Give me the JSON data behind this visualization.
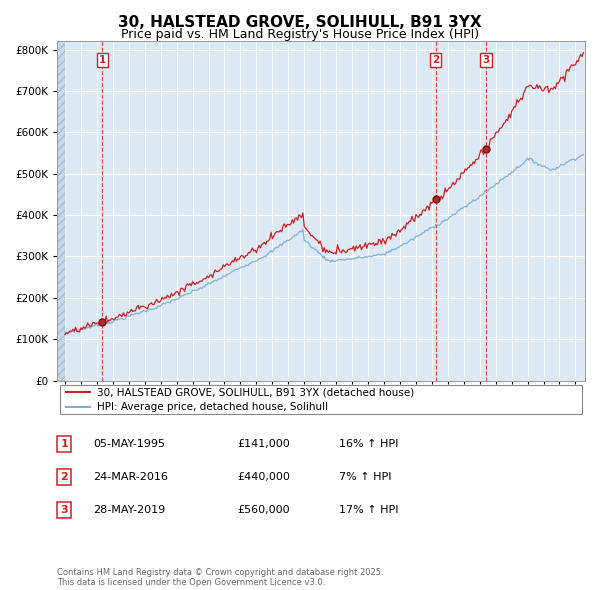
{
  "title": "30, HALSTEAD GROVE, SOLIHULL, B91 3YX",
  "subtitle": "Price paid vs. HM Land Registry's House Price Index (HPI)",
  "title_fontsize": 11,
  "subtitle_fontsize": 9,
  "ytick_values": [
    0,
    100000,
    200000,
    300000,
    400000,
    500000,
    600000,
    700000,
    800000
  ],
  "ylim": [
    0,
    820000
  ],
  "year_start": 1993,
  "year_end": 2025,
  "hpi_color": "#7aaddb",
  "price_color": "#cc2222",
  "bg_color": "#dce9f5",
  "grid_color": "#ffffff",
  "legend_label_price": "30, HALSTEAD GROVE, SOLIHULL, B91 3YX (detached house)",
  "legend_label_hpi": "HPI: Average price, detached house, Solihull",
  "sale1_date": "05-MAY-1995",
  "sale1_price": "£141,000",
  "sale1_hpi": "16% ↑ HPI",
  "sale1_year": 1995.35,
  "sale1_value": 141000,
  "sale2_date": "24-MAR-2016",
  "sale2_price": "£440,000",
  "sale2_hpi": "7% ↑ HPI",
  "sale2_year": 2016.23,
  "sale2_value": 440000,
  "sale3_date": "28-MAY-2019",
  "sale3_price": "£560,000",
  "sale3_hpi": "17% ↑ HPI",
  "sale3_year": 2019.41,
  "sale3_value": 560000,
  "footer_text": "Contains HM Land Registry data © Crown copyright and database right 2025.\nThis data is licensed under the Open Government Licence v3.0."
}
